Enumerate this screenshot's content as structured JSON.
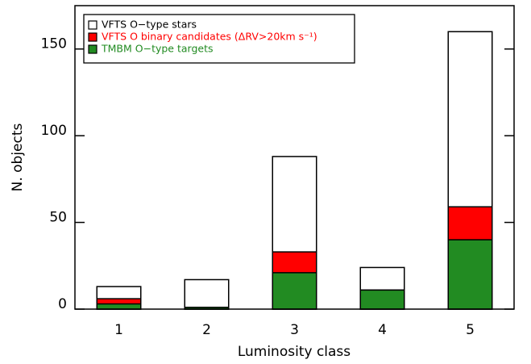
{
  "chart_data": {
    "type": "bar",
    "mode": "overlaid",
    "xlabel": "Luminosity class",
    "ylabel": "N. objects",
    "categories": [
      "1",
      "2",
      "3",
      "4",
      "5"
    ],
    "series": [
      {
        "name": "VFTS O−type stars",
        "color": "#ffffff",
        "values": [
          13,
          17,
          88,
          24,
          160
        ]
      },
      {
        "name": "VFTS O binary candidates (ΔRV>20km s⁻¹)",
        "color": "#ff0000",
        "values": [
          6,
          1,
          33,
          11,
          59
        ]
      },
      {
        "name": "TMBM O−type targets",
        "color": "#228b22",
        "values": [
          3,
          1,
          21,
          11,
          40
        ]
      }
    ],
    "ylim": [
      0,
      175
    ],
    "yticks": [
      0,
      50,
      100,
      150
    ],
    "legend": "upper left"
  }
}
